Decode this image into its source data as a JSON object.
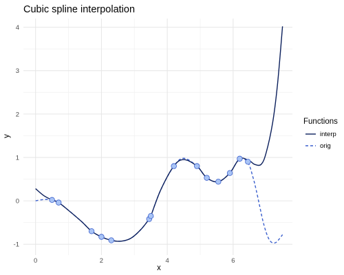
{
  "chart_data": {
    "type": "line",
    "title": "Cubic spline interpolation",
    "xlabel": "x",
    "ylabel": "y",
    "xlim": [
      -0.37,
      7.8
    ],
    "ylim": [
      -1.25,
      4.2
    ],
    "xticks": [
      0,
      2,
      4,
      6
    ],
    "yticks": [
      -1,
      0,
      1,
      2,
      3,
      4
    ],
    "grid": true,
    "legend": {
      "title": "Functions",
      "position": "right"
    },
    "series": [
      {
        "name": "interp",
        "style": "solid",
        "color": "#0b1f5c",
        "x": [
          0,
          0.25,
          0.5,
          0.7,
          1.0,
          1.4,
          1.7,
          2.0,
          2.3,
          2.6,
          2.9,
          3.2,
          3.45,
          3.5,
          3.8,
          4.2,
          4.5,
          4.9,
          5.2,
          5.55,
          5.9,
          6.2,
          6.5,
          6.65,
          6.85,
          7.0,
          7.2,
          7.35,
          7.5
        ],
        "y": [
          0.28,
          0.12,
          0.02,
          -0.04,
          -0.22,
          -0.48,
          -0.7,
          -0.83,
          -0.91,
          -0.93,
          -0.86,
          -0.66,
          -0.42,
          -0.35,
          0.25,
          0.8,
          0.95,
          0.8,
          0.53,
          0.44,
          0.64,
          0.97,
          0.92,
          0.84,
          0.84,
          1.1,
          1.8,
          2.7,
          4.02
        ]
      },
      {
        "name": "orig",
        "style": "dashed",
        "color": "#3a5fcd",
        "x": [
          0,
          0.25,
          0.5,
          0.7,
          1.0,
          1.4,
          1.7,
          2.0,
          2.3,
          2.6,
          2.9,
          3.2,
          3.45,
          3.5,
          3.8,
          4.2,
          4.5,
          4.9,
          5.2,
          5.55,
          5.9,
          6.2,
          6.45,
          6.6,
          6.7,
          6.8,
          6.9,
          7.0,
          7.1,
          7.2,
          7.3,
          7.4,
          7.5
        ],
        "y": [
          0.0,
          0.03,
          0.02,
          -0.04,
          -0.22,
          -0.48,
          -0.7,
          -0.83,
          -0.91,
          -0.93,
          -0.86,
          -0.66,
          -0.42,
          -0.35,
          0.25,
          0.8,
          0.98,
          0.8,
          0.53,
          0.44,
          0.64,
          0.97,
          0.88,
          0.55,
          0.25,
          -0.1,
          -0.45,
          -0.72,
          -0.9,
          -0.97,
          -0.96,
          -0.88,
          -0.78
        ]
      }
    ],
    "points": {
      "x": [
        0.5,
        0.7,
        1.7,
        2.0,
        2.3,
        3.45,
        3.5,
        4.2,
        4.9,
        5.2,
        5.55,
        5.9,
        6.2,
        6.45
      ],
      "y": [
        0.02,
        -0.04,
        -0.7,
        -0.83,
        -0.91,
        -0.42,
        -0.35,
        0.8,
        0.8,
        0.53,
        0.44,
        0.64,
        0.97,
        0.9
      ],
      "color": "#a9c4f5",
      "stroke": "#3a5fcd"
    },
    "colors": {
      "panel_bg": "#ffffff",
      "grid_major": "#e6e6e6",
      "grid_minor": "#f2f2f2"
    }
  }
}
